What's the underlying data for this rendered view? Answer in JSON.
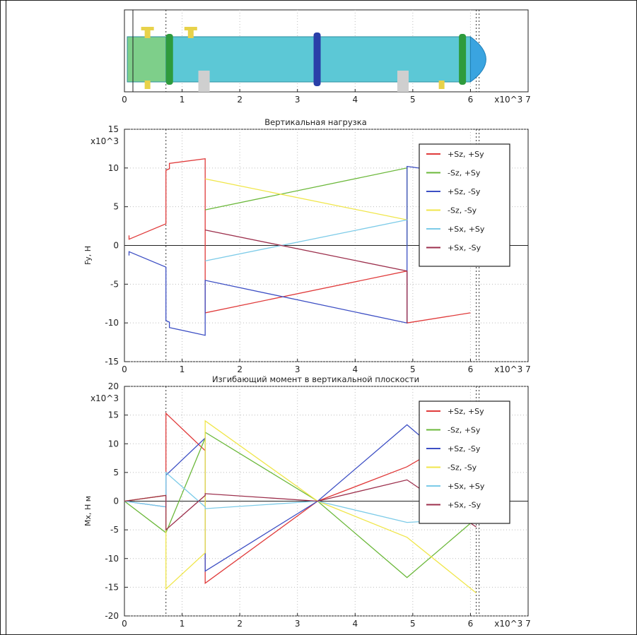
{
  "chart_data": [
    {
      "type": "line",
      "title": "",
      "xlabel": "",
      "ylabel": "",
      "x_multiplier": "x10^3",
      "xlim": [
        0,
        7
      ],
      "x_ticks": [
        "0",
        "1",
        "2",
        "3",
        "4",
        "5",
        "6",
        "7"
      ],
      "grid": true,
      "picture": "horizontal-vessel-schematic",
      "colors": {
        "shell": "#5cc8d6",
        "channel": "#7ecf8a",
        "flange": "#2e9b3c",
        "middle_flange": "#2a3fa8",
        "nozzle": "#e8d24a",
        "saddle": "#cfcfcf",
        "head": "#3aa4e0"
      },
      "series": []
    },
    {
      "type": "line",
      "title": "Вертикальная нагрузка",
      "xlabel": "",
      "ylabel": "Fy, Н",
      "x_multiplier": "x10^3",
      "y_multiplier": "x10^3",
      "xlim": [
        0,
        7
      ],
      "ylim": [
        -15,
        15
      ],
      "x_ticks": [
        "0",
        "1",
        "2",
        "3",
        "4",
        "5",
        "6",
        "7"
      ],
      "y_ticks": [
        "15",
        "10",
        "5",
        "0",
        "-5",
        "-10",
        "-15"
      ],
      "grid": true,
      "legend_position": "top-right",
      "series": [
        {
          "name": "+Sz, +Sy",
          "color": "#e03b3b",
          "x": [
            0.08,
            0.08,
            0.72,
            0.72,
            0.78,
            0.78,
            1.4,
            1.4,
            4.9,
            4.9,
            6.0
          ],
          "y": [
            1.3,
            0.8,
            2.8,
            9.7,
            9.9,
            10.6,
            11.2,
            -8.7,
            -3.3,
            -10,
            -8.7
          ]
        },
        {
          "name": "-Sz, +Sy",
          "color": "#6bb83a",
          "x": [
            1.4,
            4.9,
            4.9
          ],
          "y": [
            4.6,
            10.0,
            0
          ]
        },
        {
          "name": "+Sz, -Sy",
          "color": "#3d4fc4",
          "x": [
            0.08,
            0.08,
            0.72,
            0.72,
            0.78,
            0.78,
            1.4,
            1.4,
            4.9,
            4.9,
            5.3
          ],
          "y": [
            -1.3,
            -0.8,
            -2.8,
            -9.7,
            -9.9,
            -10.6,
            -11.6,
            -4.5,
            -10,
            10.2,
            9.8
          ]
        },
        {
          "name": "-Sz, -Sy",
          "color": "#f0e64a",
          "x": [
            1.4,
            4.9
          ],
          "y": [
            8.6,
            3.3
          ]
        },
        {
          "name": "+Sx, +Sy",
          "color": "#7ccbe8",
          "x": [
            1.4,
            4.9
          ],
          "y": [
            -2.0,
            3.3
          ]
        },
        {
          "name": "+Sx, -Sy",
          "color": "#9c2f4c",
          "x": [
            1.4,
            4.9,
            4.9
          ],
          "y": [
            2.0,
            -3.3,
            -10.0
          ]
        }
      ]
    },
    {
      "type": "line",
      "title": "Изгибающий момент в вертикальной плоскости",
      "xlabel": "",
      "ylabel": "Mx, Н м",
      "x_multiplier": "x10^3",
      "y_multiplier": "x10^3",
      "xlim": [
        0,
        7
      ],
      "ylim": [
        -20,
        20
      ],
      "x_ticks": [
        "0",
        "1",
        "2",
        "3",
        "4",
        "5",
        "6",
        "7"
      ],
      "y_ticks": [
        "20",
        "15",
        "10",
        "5",
        "0",
        "-5",
        "-10",
        "-15",
        "-20"
      ],
      "grid": true,
      "legend_position": "top-right",
      "series": [
        {
          "name": "+Sz, +Sy",
          "color": "#e03b3b",
          "x": [
            0.0,
            0.72,
            0.72,
            1.4,
            1.4,
            3.35,
            4.9,
            6.1
          ],
          "y": [
            0.0,
            1.0,
            15.3,
            8.8,
            -14.3,
            0.0,
            6.0,
            13.0
          ]
        },
        {
          "name": "-Sz, +Sy",
          "color": "#6bb83a",
          "x": [
            0.0,
            0.72,
            1.4,
            1.4,
            3.35,
            4.9,
            6.1
          ],
          "y": [
            0.0,
            -5.5,
            11.0,
            12.0,
            0.0,
            -13.3,
            -3.0
          ]
        },
        {
          "name": "+Sz, -Sy",
          "color": "#3d4fc4",
          "x": [
            0.0,
            0.72,
            0.72,
            1.4,
            1.4,
            3.35,
            4.9,
            6.1
          ],
          "y": [
            0.0,
            -1.0,
            4.5,
            11.0,
            -12.2,
            0.0,
            13.3,
            3.0
          ]
        },
        {
          "name": "-Sz, -Sy",
          "color": "#f0e64a",
          "x": [
            0.0,
            0.72,
            0.72,
            1.4,
            1.4,
            3.35,
            4.9,
            6.1
          ],
          "y": [
            0.0,
            1.0,
            -15.3,
            -9.0,
            14.0,
            0.0,
            -6.3,
            -16.0
          ]
        },
        {
          "name": "+Sx, +Sy",
          "color": "#7ccbe8",
          "x": [
            0.0,
            0.72,
            0.72,
            1.4,
            1.4,
            3.35,
            4.9,
            6.1
          ],
          "y": [
            0.0,
            -1.0,
            5.0,
            -1.0,
            -1.3,
            0.0,
            -3.7,
            -3.0
          ]
        },
        {
          "name": "+Sx, -Sy",
          "color": "#9c2f4c",
          "x": [
            0.0,
            0.72,
            0.72,
            1.4,
            1.4,
            3.35,
            4.9,
            6.1
          ],
          "y": [
            0.0,
            1.0,
            -5.0,
            1.0,
            1.3,
            0.0,
            3.7,
            -4.5
          ]
        }
      ]
    }
  ]
}
